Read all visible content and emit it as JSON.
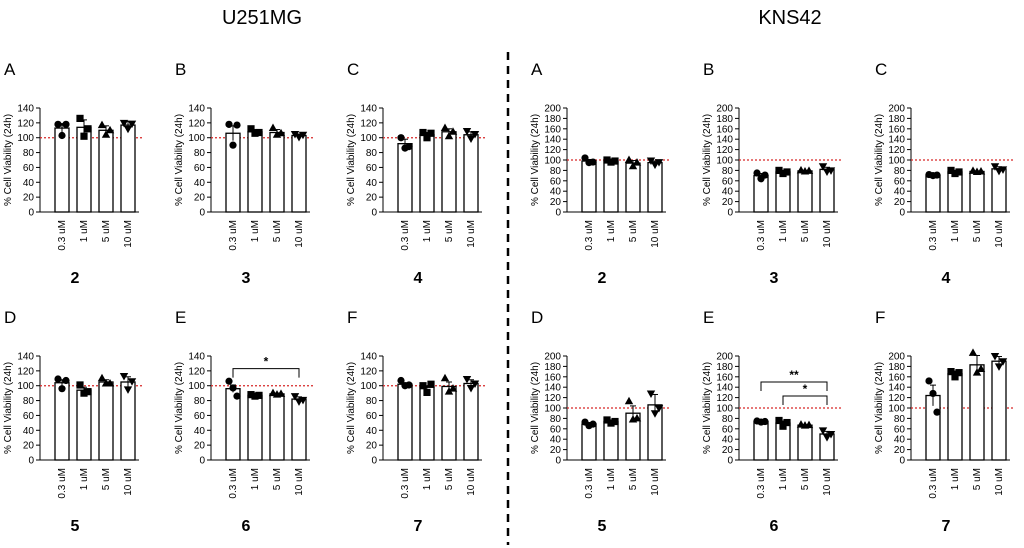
{
  "figure": {
    "groups": [
      {
        "id": "u251mg",
        "title": "U251MG"
      },
      {
        "id": "kns42",
        "title": "KNS42"
      }
    ]
  },
  "chart_data": [
    {
      "group": "U251MG",
      "panel": "A",
      "compound": "2",
      "type": "bar",
      "ylabel": "% Cell Viability (24h)",
      "ylim": [
        0,
        140
      ],
      "yticks": [
        0,
        20,
        40,
        60,
        80,
        100,
        120,
        140
      ],
      "reference_line": 100,
      "marker": "circle",
      "categories": [
        "0.3 uM",
        "1 uM",
        "5 uM",
        "10 uM"
      ],
      "values": [
        113,
        114,
        110,
        117
      ],
      "errors": [
        6,
        10,
        6,
        5
      ],
      "points": [
        [
          118,
          103,
          118
        ],
        [
          126,
          102,
          112
        ],
        [
          117,
          104,
          110
        ],
        [
          120,
          112,
          119
        ]
      ],
      "markers": [
        "circle",
        "square",
        "triangle-up",
        "triangle-down"
      ],
      "significance": []
    },
    {
      "group": "U251MG",
      "panel": "B",
      "compound": "3",
      "type": "bar",
      "ylabel": "% Cell Viability (24h)",
      "ylim": [
        0,
        140
      ],
      "yticks": [
        0,
        20,
        40,
        60,
        80,
        100,
        120,
        140
      ],
      "reference_line": 100,
      "categories": [
        "0.3 uM",
        "1 uM",
        "5 uM",
        "10 uM"
      ],
      "values": [
        106,
        108,
        107,
        103
      ],
      "errors": [
        10,
        3,
        4,
        2
      ],
      "points": [
        [
          118,
          90,
          117
        ],
        [
          112,
          106,
          107
        ],
        [
          113,
          104,
          106
        ],
        [
          105,
          101,
          104
        ]
      ],
      "markers": [
        "circle",
        "square",
        "triangle-up",
        "triangle-down"
      ],
      "significance": []
    },
    {
      "group": "U251MG",
      "panel": "C",
      "compound": "4",
      "type": "bar",
      "ylabel": "% Cell Viability (24h)",
      "ylim": [
        0,
        140
      ],
      "yticks": [
        0,
        20,
        40,
        60,
        80,
        100,
        120,
        140
      ],
      "reference_line": 100,
      "categories": [
        "0.3 uM",
        "1 uM",
        "5 uM",
        "10 uM"
      ],
      "values": [
        92,
        104,
        108,
        104
      ],
      "errors": [
        6,
        3,
        4,
        4
      ],
      "points": [
        [
          100,
          86,
          88
        ],
        [
          107,
          100,
          106
        ],
        [
          113,
          102,
          108
        ],
        [
          109,
          99,
          105
        ]
      ],
      "markers": [
        "circle",
        "square",
        "triangle-up",
        "triangle-down"
      ],
      "significance": []
    },
    {
      "group": "U251MG",
      "panel": "D",
      "compound": "5",
      "type": "bar",
      "ylabel": "% Cell Viability (24h)",
      "ylim": [
        0,
        140
      ],
      "yticks": [
        0,
        20,
        40,
        60,
        80,
        100,
        120,
        140
      ],
      "reference_line": 100,
      "categories": [
        "0.3 uM",
        "1 uM",
        "5 uM",
        "10 uM"
      ],
      "values": [
        104,
        94,
        105,
        105
      ],
      "errors": [
        4,
        4,
        3,
        7
      ],
      "points": [
        [
          109,
          96,
          107
        ],
        [
          101,
          90,
          92
        ],
        [
          110,
          103,
          103
        ],
        [
          113,
          95,
          106
        ]
      ],
      "markers": [
        "circle",
        "square",
        "triangle-up",
        "triangle-down"
      ],
      "significance": []
    },
    {
      "group": "U251MG",
      "panel": "E",
      "compound": "6",
      "type": "bar",
      "ylabel": "% Cell Viability (24h)",
      "ylim": [
        0,
        140
      ],
      "yticks": [
        0,
        20,
        40,
        60,
        80,
        100,
        120,
        140
      ],
      "reference_line": 100,
      "categories": [
        "0.3 uM",
        "1 uM",
        "5 uM",
        "10 uM"
      ],
      "values": [
        96,
        87,
        89,
        82
      ],
      "errors": [
        5,
        1,
        1,
        3
      ],
      "points": [
        [
          106,
          97,
          86
        ],
        [
          88,
          86,
          87
        ],
        [
          90,
          88,
          89
        ],
        [
          86,
          79,
          81
        ]
      ],
      "markers": [
        "circle",
        "square",
        "triangle-up",
        "triangle-down"
      ],
      "significance": [
        {
          "from": "0.3 uM",
          "to": "10 uM",
          "label": "*"
        }
      ]
    },
    {
      "group": "U251MG",
      "panel": "F",
      "compound": "7",
      "type": "bar",
      "ylabel": "% Cell Viability (24h)",
      "ylim": [
        0,
        140
      ],
      "yticks": [
        0,
        20,
        40,
        60,
        80,
        100,
        120,
        140
      ],
      "reference_line": 100,
      "categories": [
        "0.3 uM",
        "1 uM",
        "5 uM",
        "10 uM"
      ],
      "values": [
        102,
        98,
        99,
        103
      ],
      "errors": [
        2,
        2,
        6,
        5
      ],
      "points": [
        [
          107,
          100,
          101
        ],
        [
          100,
          91,
          102
        ],
        [
          110,
          92,
          96
        ],
        [
          109,
          97,
          103
        ]
      ],
      "markers": [
        "circle",
        "square",
        "triangle-up",
        "triangle-down"
      ],
      "significance": []
    },
    {
      "group": "KNS42",
      "panel": "A",
      "compound": "2",
      "type": "bar",
      "ylabel": "% Cell Viability (24h)",
      "ylim": [
        0,
        200
      ],
      "yticks": [
        0,
        20,
        40,
        60,
        80,
        100,
        120,
        140,
        160,
        180,
        200
      ],
      "reference_line": 100,
      "categories": [
        "0.3 uM",
        "1 uM",
        "5 uM",
        "10 uM"
      ],
      "values": [
        98,
        98,
        94,
        95
      ],
      "errors": [
        3,
        2,
        5,
        3
      ],
      "points": [
        [
          104,
          95,
          96
        ],
        [
          100,
          96,
          98
        ],
        [
          100,
          88,
          95
        ],
        [
          99,
          91,
          96
        ]
      ],
      "markers": [
        "circle",
        "square",
        "triangle-up",
        "triangle-down"
      ],
      "significance": []
    },
    {
      "group": "KNS42",
      "panel": "B",
      "compound": "3",
      "type": "bar",
      "ylabel": "% Cell Viability (24h)",
      "ylim": [
        0,
        200
      ],
      "yticks": [
        0,
        20,
        40,
        60,
        80,
        100,
        120,
        140,
        160,
        180,
        200
      ],
      "reference_line": 100,
      "categories": [
        "0.3 uM",
        "1 uM",
        "5 uM",
        "10 uM"
      ],
      "values": [
        70,
        77,
        79,
        82
      ],
      "errors": [
        4,
        3,
        1,
        4
      ],
      "points": [
        [
          75,
          64,
          71
        ],
        [
          80,
          74,
          77
        ],
        [
          80,
          78,
          79
        ],
        [
          88,
          78,
          80
        ]
      ],
      "markers": [
        "circle",
        "square",
        "triangle-up",
        "triangle-down"
      ],
      "significance": []
    },
    {
      "group": "KNS42",
      "panel": "C",
      "compound": "4",
      "type": "bar",
      "ylabel": "% Cell Viability (24h)",
      "ylim": [
        0,
        200
      ],
      "yticks": [
        0,
        20,
        40,
        60,
        80,
        100,
        120,
        140,
        160,
        180,
        200
      ],
      "reference_line": 100,
      "categories": [
        "0.3 uM",
        "1 uM",
        "5 uM",
        "10 uM"
      ],
      "values": [
        71,
        77,
        78,
        83
      ],
      "errors": [
        1,
        3,
        1,
        4
      ],
      "points": [
        [
          72,
          70,
          71
        ],
        [
          80,
          74,
          77
        ],
        [
          79,
          77,
          78
        ],
        [
          88,
          79,
          82
        ]
      ],
      "markers": [
        "circle",
        "square",
        "triangle-up",
        "triangle-down"
      ],
      "significance": []
    },
    {
      "group": "KNS42",
      "panel": "D",
      "compound": "5",
      "type": "bar",
      "ylabel": "% Cell Viability (24h)",
      "ylim": [
        0,
        200
      ],
      "yticks": [
        0,
        20,
        40,
        60,
        80,
        100,
        120,
        140,
        160,
        180,
        200
      ],
      "reference_line": 100,
      "categories": [
        "0.3 uM",
        "1 uM",
        "5 uM",
        "10 uM"
      ],
      "values": [
        69,
        74,
        90,
        106
      ],
      "errors": [
        3,
        3,
        14,
        20
      ],
      "points": [
        [
          73,
          66,
          69
        ],
        [
          77,
          71,
          74
        ],
        [
          113,
          78,
          80
        ],
        [
          128,
          90,
          100
        ]
      ],
      "markers": [
        "circle",
        "square",
        "triangle-up",
        "triangle-down"
      ],
      "significance": []
    },
    {
      "group": "KNS42",
      "panel": "E",
      "compound": "6",
      "type": "bar",
      "ylabel": "% Cell Viability (24h)",
      "ylim": [
        0,
        200
      ],
      "yticks": [
        0,
        20,
        40,
        60,
        80,
        100,
        120,
        140,
        160,
        180,
        200
      ],
      "reference_line": 100,
      "categories": [
        "0.3 uM",
        "1 uM",
        "5 uM",
        "10 uM"
      ],
      "values": [
        74,
        71,
        67,
        50
      ],
      "errors": [
        1,
        4,
        1,
        5
      ],
      "points": [
        [
          75,
          73,
          74
        ],
        [
          76,
          65,
          72
        ],
        [
          68,
          66,
          67
        ],
        [
          57,
          44,
          50
        ]
      ],
      "markers": [
        "circle",
        "square",
        "triangle-up",
        "triangle-down"
      ],
      "significance": [
        {
          "from": "0.3 uM",
          "to": "10 uM",
          "label": "**"
        },
        {
          "from": "1 uM",
          "to": "10 uM",
          "label": "*"
        }
      ]
    },
    {
      "group": "KNS42",
      "panel": "F",
      "compound": "7",
      "type": "bar",
      "ylabel": "% Cell Viability (24h)",
      "ylim": [
        0,
        200
      ],
      "yticks": [
        0,
        20,
        40,
        60,
        80,
        100,
        120,
        140,
        160,
        180,
        200
      ],
      "reference_line": 100,
      "categories": [
        "0.3 uM",
        "1 uM",
        "5 uM",
        "10 uM"
      ],
      "values": [
        124,
        166,
        183,
        190
      ],
      "errors": [
        20,
        5,
        18,
        9
      ],
      "points": [
        [
          152,
          128,
          92
        ],
        [
          170,
          160,
          168
        ],
        [
          206,
          168,
          175
        ],
        [
          200,
          180,
          190
        ]
      ],
      "markers": [
        "circle",
        "square",
        "triangle-up",
        "triangle-down"
      ],
      "significance": []
    }
  ]
}
